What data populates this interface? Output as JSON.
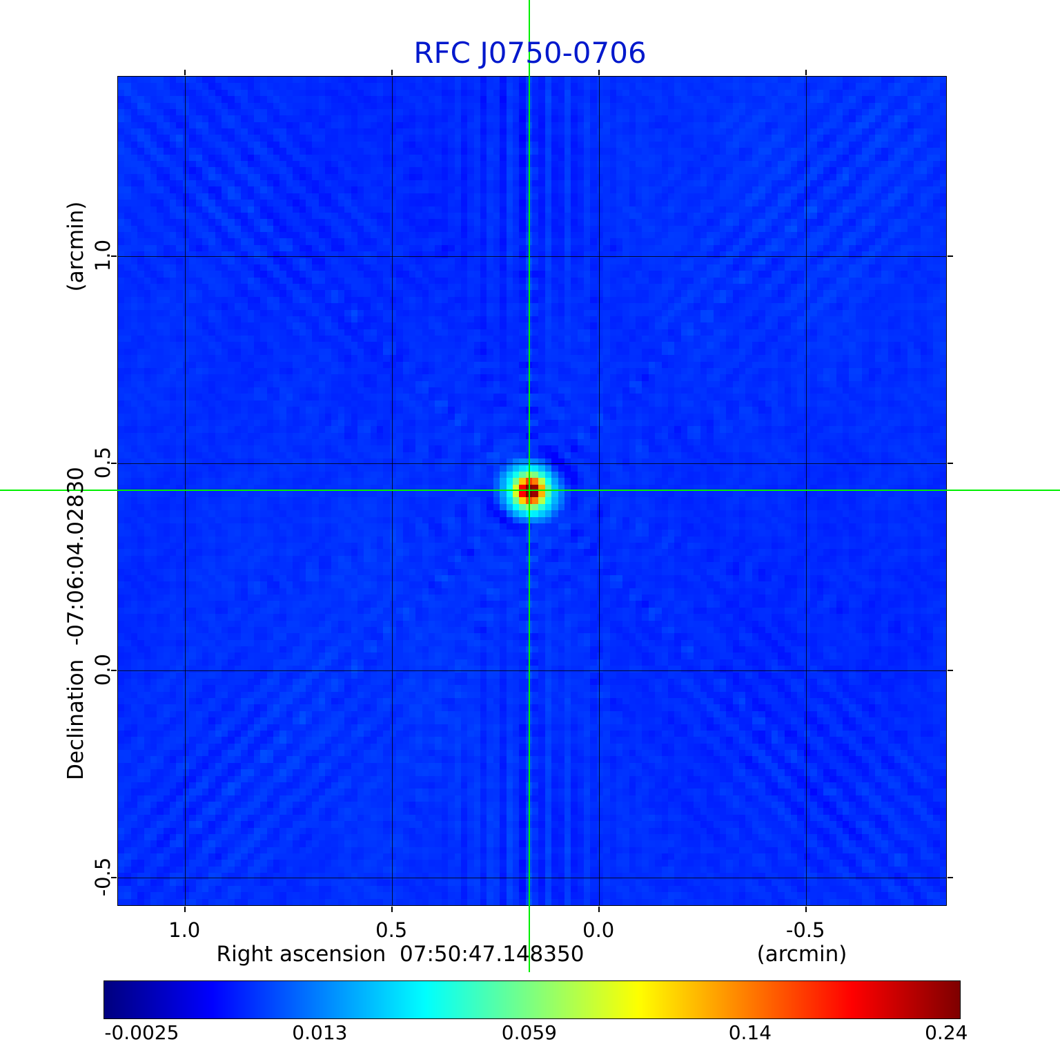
{
  "title": "RFC J0750-0706",
  "colors": {
    "title": "#0018cc",
    "crosshair": "#00ef00",
    "grid": "#000000"
  },
  "chart_data": {
    "type": "heatmap",
    "title": "RFC J0750-0706",
    "xlabel": "Right ascension  07:50:47.148350",
    "x_unit": "(arcmin)",
    "ylabel": "Declination  -07:06:04.02830",
    "y_unit": "(arcmin)",
    "x_tick_labels": [
      "1.0",
      "0.5",
      "0.0",
      "-0.5"
    ],
    "x_tick_values": [
      1.0,
      0.5,
      0.0,
      -0.5
    ],
    "y_tick_labels": [
      "1.0",
      "0.5",
      "0.0",
      "-0.5"
    ],
    "y_tick_values": [
      1.0,
      0.5,
      0.0,
      -0.5
    ],
    "x_range": [
      1.162,
      -0.838
    ],
    "y_range": [
      1.433,
      -0.567
    ],
    "grid": true,
    "legend": "none",
    "colormap": "jet",
    "stretch": {
      "type": "sqrt",
      "offset": 0.003,
      "scale": 0.2505
    },
    "colorbar": {
      "tick_labels": [
        "-0.0025",
        "0.013",
        "0.059",
        "0.14",
        "0.24"
      ],
      "tick_values": [
        -0.0025,
        0.013,
        0.059,
        0.14,
        0.24
      ]
    },
    "source": {
      "x_arcmin": 0.1667,
      "y_arcmin": 0.4333,
      "peak_flux": 0.24,
      "background_flux": 0.0042
    },
    "crosshair": {
      "x_arcmin": 0.1667,
      "y_arcmin": 0.4333
    }
  }
}
